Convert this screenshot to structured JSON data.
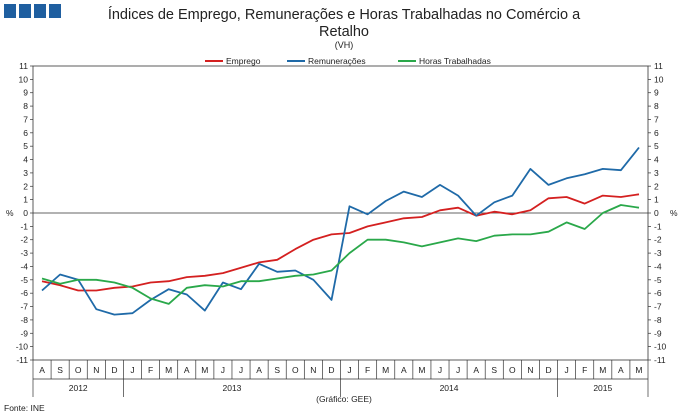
{
  "header": {
    "logo_colors": [
      "#1f5fa0",
      "#1f5fa0",
      "#1f5fa0",
      "#1f5fa0"
    ]
  },
  "chart_data": {
    "type": "line",
    "title_line1": "Índices de Emprego, Remunerações e Horas Trabalhadas no Comércio a",
    "title_line2": "Retalho",
    "subtitle": "(VH)",
    "ylabel": "%",
    "ylim": [
      -11,
      11
    ],
    "yticks": [
      -11,
      -10,
      -9,
      -8,
      -7,
      -6,
      -5,
      -4,
      -3,
      -2,
      -1,
      0,
      1,
      2,
      3,
      4,
      5,
      6,
      7,
      8,
      9,
      10,
      11
    ],
    "grid": false,
    "legend_position": "top",
    "categories": [
      "A",
      "S",
      "O",
      "N",
      "D",
      "J",
      "F",
      "M",
      "A",
      "M",
      "J",
      "J",
      "A",
      "S",
      "O",
      "N",
      "D",
      "J",
      "F",
      "M",
      "A",
      "M",
      "J",
      "J",
      "A",
      "S",
      "O",
      "N",
      "D",
      "J",
      "F",
      "M",
      "A",
      "M"
    ],
    "years": [
      {
        "label": "2012",
        "start": 0,
        "end": 4
      },
      {
        "label": "2013",
        "start": 5,
        "end": 16
      },
      {
        "label": "2014",
        "start": 17,
        "end": 28
      },
      {
        "label": "2015",
        "start": 29,
        "end": 33
      }
    ],
    "series": [
      {
        "name": "Emprego",
        "color": "#d42020",
        "values": [
          -5.1,
          -5.4,
          -5.8,
          -5.8,
          -5.6,
          -5.5,
          -5.2,
          -5.1,
          -4.8,
          -4.7,
          -4.5,
          -4.1,
          -3.7,
          -3.5,
          -2.7,
          -2.0,
          -1.6,
          -1.5,
          -1.0,
          -0.7,
          -0.4,
          -0.3,
          0.2,
          0.4,
          -0.2,
          0.1,
          -0.1,
          0.2,
          1.1,
          1.2,
          0.7,
          1.3,
          1.2,
          1.4
        ]
      },
      {
        "name": "Remunerações",
        "color": "#1f6aa8",
        "values": [
          -5.8,
          -4.6,
          -5.0,
          -7.2,
          -7.6,
          -7.5,
          -6.5,
          -5.7,
          -6.1,
          -7.3,
          -5.2,
          -5.7,
          -3.8,
          -4.4,
          -4.3,
          -5.0,
          -6.5,
          0.5,
          -0.1,
          0.9,
          1.6,
          1.2,
          2.1,
          1.3,
          -0.2,
          0.8,
          1.3,
          3.3,
          2.1,
          2.6,
          2.9,
          3.3,
          3.2,
          4.9
        ]
      },
      {
        "name": "Horas Trabalhadas",
        "color": "#2aa84a",
        "values": [
          -4.9,
          -5.3,
          -5.0,
          -5.0,
          -5.2,
          -5.6,
          -6.4,
          -6.8,
          -5.6,
          -5.4,
          -5.5,
          -5.1,
          -5.1,
          -4.9,
          -4.7,
          -4.6,
          -4.3,
          -3.0,
          -2.0,
          -2.0,
          -2.2,
          -2.5,
          -2.2,
          -1.9,
          -2.1,
          -1.7,
          -1.6,
          -1.6,
          -1.4,
          -0.7,
          -1.2,
          0.0,
          0.6,
          0.4
        ]
      }
    ]
  },
  "footer": {
    "source": "Fonte: INE",
    "credit": "(Gráfico: GEE)"
  }
}
